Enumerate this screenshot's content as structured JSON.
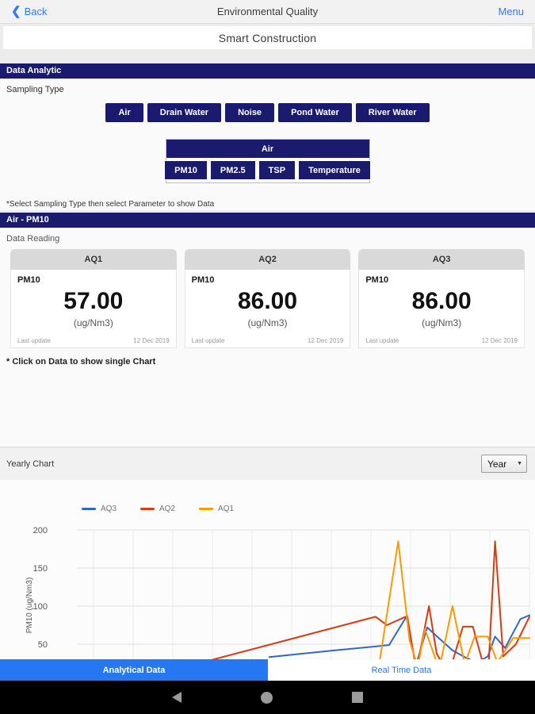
{
  "topbar": {
    "back_label": "Back",
    "back_chevron": "❮",
    "title": "Environmental Quality",
    "menu_label": "Menu"
  },
  "header": {
    "title": "Smart Construction"
  },
  "data_analytic": {
    "banner": "Data Analytic",
    "sampling_type_label": "Sampling Type",
    "sampling_types": [
      "Air",
      "Drain Water",
      "Noise",
      "Pond Water",
      "River Water"
    ],
    "selected_type": "Air",
    "parameter_group_title": "Air",
    "parameters": [
      "PM10",
      "PM2.5",
      "TSP",
      "Temperature"
    ],
    "note": "*Select Sampling Type then select Parameter to show Data"
  },
  "selection_banner": "Air - PM10",
  "data_reading": {
    "label": "Data Reading",
    "cards": [
      {
        "station": "AQ1",
        "parameter": "PM10",
        "value": "57.00",
        "unit": "(ug/Nm3)",
        "last_update_label": "Last update",
        "last_update": "12 Dec 2019"
      },
      {
        "station": "AQ2",
        "parameter": "PM10",
        "value": "86.00",
        "unit": "(ug/Nm3)",
        "last_update_label": "Last update",
        "last_update": "12 Dec 2019"
      },
      {
        "station": "AQ3",
        "parameter": "PM10",
        "value": "86.00",
        "unit": "(ug/Nm3)",
        "last_update_label": "Last update",
        "last_update": "12 Dec 2019"
      }
    ],
    "note": "* Click on Data to show single Chart"
  },
  "chart_section": {
    "label": "Yearly Chart",
    "period_select": {
      "value": "Year",
      "arrow": "▼",
      "options": [
        "Year"
      ]
    }
  },
  "chart_data": {
    "type": "line",
    "title": "Yearly Chart",
    "xlabel": "",
    "ylabel": "PM10 (ug/Nm3)",
    "ylim": [
      0,
      210
    ],
    "yticks": [
      50,
      100,
      150,
      200
    ],
    "grid": true,
    "legend_position": "top",
    "x_axis_note": "x-axis labels hidden behind bottom tab bar; x expressed as 0-100% of plot width",
    "series": [
      {
        "name": "AQ3",
        "color": "#3366cc",
        "points": [
          [
            42.5,
            33
          ],
          [
            57,
            42
          ],
          [
            66,
            47
          ],
          [
            69,
            49
          ],
          [
            72.8,
            86
          ],
          [
            74.9,
            22
          ],
          [
            77.4,
            72
          ],
          [
            79.6,
            60
          ],
          [
            83,
            42
          ],
          [
            86,
            32
          ],
          [
            88.5,
            26
          ],
          [
            90.8,
            34
          ],
          [
            92.4,
            60
          ],
          [
            94.6,
            45
          ],
          [
            98,
            83
          ],
          [
            100,
            88
          ]
        ]
      },
      {
        "name": "AQ2",
        "color": "#dc3912",
        "points": [
          [
            27,
            25
          ],
          [
            66,
            86
          ],
          [
            68.5,
            75
          ],
          [
            73,
            87
          ],
          [
            75,
            15
          ],
          [
            77.8,
            100
          ],
          [
            79.5,
            38
          ],
          [
            80.5,
            27
          ],
          [
            83,
            27
          ],
          [
            85.3,
            73
          ],
          [
            87.5,
            73
          ],
          [
            89.5,
            30
          ],
          [
            91,
            25
          ],
          [
            92.4,
            185
          ],
          [
            94.2,
            34
          ],
          [
            97,
            50
          ],
          [
            100,
            86
          ]
        ]
      },
      {
        "name": "AQ1",
        "color": "#ff9900",
        "points": [
          [
            66.5,
            12
          ],
          [
            71,
            185
          ],
          [
            73.5,
            55
          ],
          [
            75.3,
            20
          ],
          [
            76.9,
            70
          ],
          [
            79.3,
            30
          ],
          [
            80.3,
            24
          ],
          [
            83,
            100
          ],
          [
            85.7,
            24
          ],
          [
            87.9,
            60
          ],
          [
            90.8,
            60
          ],
          [
            92.9,
            26
          ],
          [
            96.4,
            58
          ],
          [
            100,
            58
          ]
        ]
      }
    ]
  },
  "tabs": {
    "analytical": "Analytical Data",
    "realtime": "Real Time Data",
    "active": "Analytical Data"
  },
  "colors": {
    "navy": "#1a1a6e",
    "accent_blue": "#2577f2",
    "link_blue": "#3478f6",
    "card_header_gray": "#d9d9d9"
  }
}
